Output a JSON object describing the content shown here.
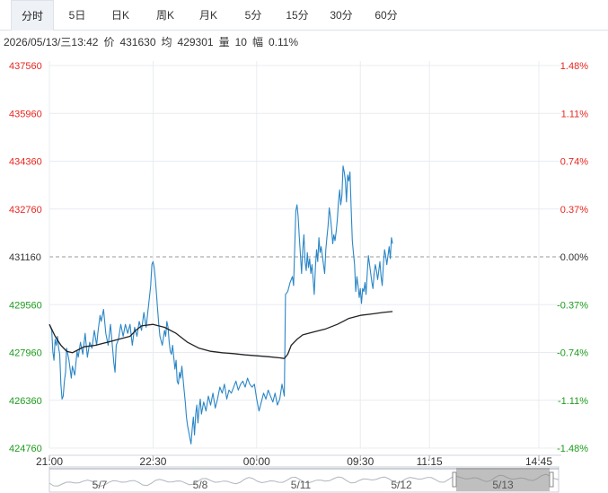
{
  "tabs": [
    {
      "label": "分时",
      "active": true
    },
    {
      "label": "5日"
    },
    {
      "label": "日K"
    },
    {
      "label": "周K"
    },
    {
      "label": "月K"
    },
    {
      "label": "5分"
    },
    {
      "label": "15分"
    },
    {
      "label": "30分"
    },
    {
      "label": "60分"
    }
  ],
  "info": {
    "datetime": "2026/05/13/三13:42",
    "price_label": "价",
    "price": "431630",
    "avg_label": "均",
    "avg": "429301",
    "volume_label": "量",
    "volume": "10",
    "amplitude_label": "幅",
    "amplitude": "0.11%"
  },
  "colors": {
    "up": "#e8261f",
    "down": "#1d9c1d",
    "price_line": "#2a86c6",
    "avg_line": "#222222",
    "grid": "#e8ecf0",
    "navigator_fill": "#8a8a8a"
  },
  "chart_data": {
    "type": "line",
    "ref_price": 431160,
    "ylim": [
      424760,
      437560
    ],
    "y_ticks_left": [
      "437560",
      "435960",
      "434360",
      "432760",
      "431160",
      "429560",
      "427960",
      "426360",
      "424760"
    ],
    "y_ticks_right": [
      "1.48%",
      "1.11%",
      "0.74%",
      "0.37%",
      "0.00%",
      "-0.37%",
      "-0.74%",
      "-1.11%",
      "-1.48%"
    ],
    "x_ticks": [
      {
        "label": "21:00",
        "t": 0
      },
      {
        "label": "22:30",
        "t": 90
      },
      {
        "label": "00:00",
        "t": 180
      },
      {
        "label": "09:30",
        "t": 270
      },
      {
        "label": "11:15",
        "t": 330
      },
      {
        "label": "14:45",
        "t": 425
      }
    ],
    "x_range": [
      0,
      425
    ],
    "navigator_dates": [
      "5/7",
      "5/8",
      "5/11",
      "5/12",
      "5/13"
    ],
    "series": [
      {
        "key": "price",
        "points": [
          [
            0,
            428900
          ],
          [
            2,
            428700
          ],
          [
            3,
            428000
          ],
          [
            4,
            427700
          ],
          [
            5,
            428400
          ],
          [
            6,
            428200
          ],
          [
            7,
            428500
          ],
          [
            8,
            428100
          ],
          [
            9,
            427900
          ],
          [
            10,
            426900
          ],
          [
            11,
            426400
          ],
          [
            12,
            426500
          ],
          [
            13,
            427000
          ],
          [
            14,
            427300
          ],
          [
            15,
            428100
          ],
          [
            17,
            427700
          ],
          [
            19,
            427100
          ],
          [
            20,
            427500
          ],
          [
            22,
            427200
          ],
          [
            24,
            428000
          ],
          [
            25,
            427800
          ],
          [
            27,
            428300
          ],
          [
            29,
            427900
          ],
          [
            31,
            428600
          ],
          [
            33,
            427800
          ],
          [
            35,
            428300
          ],
          [
            37,
            428100
          ],
          [
            39,
            428700
          ],
          [
            41,
            428200
          ],
          [
            42,
            428600
          ],
          [
            44,
            429200
          ],
          [
            45,
            429000
          ],
          [
            47,
            429400
          ],
          [
            49,
            428600
          ],
          [
            51,
            428200
          ],
          [
            53,
            428900
          ],
          [
            54,
            428500
          ],
          [
            56,
            427600
          ],
          [
            57,
            427300
          ],
          [
            58,
            428200
          ],
          [
            60,
            428400
          ],
          [
            62,
            428900
          ],
          [
            64,
            428500
          ],
          [
            66,
            428900
          ],
          [
            68,
            428600
          ],
          [
            70,
            428900
          ],
          [
            72,
            428200
          ],
          [
            74,
            428800
          ],
          [
            76,
            428500
          ],
          [
            78,
            429000
          ],
          [
            80,
            428700
          ],
          [
            82,
            429300
          ],
          [
            84,
            428800
          ],
          [
            86,
            429500
          ],
          [
            88,
            430200
          ],
          [
            89,
            430900
          ],
          [
            90,
            431000
          ],
          [
            91,
            430800
          ],
          [
            92,
            430400
          ],
          [
            93,
            429900
          ],
          [
            94,
            429400
          ],
          [
            95,
            428900
          ],
          [
            96,
            428500
          ],
          [
            98,
            428200
          ],
          [
            100,
            428700
          ],
          [
            101,
            428500
          ],
          [
            102,
            429000
          ],
          [
            103,
            428800
          ],
          [
            104,
            428300
          ],
          [
            105,
            428000
          ],
          [
            106,
            427900
          ],
          [
            107,
            428200
          ],
          [
            108,
            427800
          ],
          [
            109,
            427400
          ],
          [
            110,
            427700
          ],
          [
            111,
            427000
          ],
          [
            112,
            426900
          ],
          [
            113,
            427300
          ],
          [
            114,
            427100
          ],
          [
            115,
            427500
          ],
          [
            116,
            427100
          ],
          [
            117,
            426700
          ],
          [
            118,
            426300
          ],
          [
            119,
            425800
          ],
          [
            120,
            425500
          ],
          [
            121,
            425300
          ],
          [
            122,
            425100
          ],
          [
            123,
            424900
          ],
          [
            124,
            425400
          ],
          [
            125,
            425800
          ],
          [
            126,
            425200
          ],
          [
            127,
            425900
          ],
          [
            128,
            426200
          ],
          [
            129,
            425600
          ],
          [
            130,
            426100
          ],
          [
            131,
            426400
          ],
          [
            132,
            425900
          ],
          [
            134,
            426300
          ],
          [
            136,
            426000
          ],
          [
            138,
            426500
          ],
          [
            140,
            426200
          ],
          [
            142,
            426600
          ],
          [
            144,
            426100
          ],
          [
            146,
            426400
          ],
          [
            148,
            426800
          ],
          [
            150,
            426600
          ],
          [
            152,
            426900
          ],
          [
            154,
            426400
          ],
          [
            156,
            426700
          ],
          [
            158,
            426600
          ],
          [
            160,
            426800
          ],
          [
            162,
            427000
          ],
          [
            164,
            426700
          ],
          [
            166,
            426900
          ],
          [
            168,
            427000
          ],
          [
            170,
            426800
          ],
          [
            172,
            427100
          ],
          [
            174,
            426900
          ],
          [
            176,
            426800
          ],
          [
            178,
            426900
          ],
          [
            180,
            426400
          ],
          [
            181,
            426200
          ],
          [
            182,
            426000
          ],
          [
            184,
            426300
          ],
          [
            186,
            426600
          ],
          [
            188,
            426400
          ],
          [
            190,
            426700
          ],
          [
            192,
            426500
          ],
          [
            194,
            426300
          ],
          [
            196,
            426600
          ],
          [
            198,
            426200
          ],
          [
            200,
            426400
          ],
          [
            202,
            426900
          ],
          [
            204,
            426500
          ],
          [
            205,
            429900
          ],
          [
            207,
            430000
          ],
          [
            209,
            430300
          ],
          [
            211,
            430500
          ],
          [
            212,
            430200
          ],
          [
            214,
            432700
          ],
          [
            215,
            432900
          ],
          [
            216,
            432500
          ],
          [
            217,
            431800
          ],
          [
            218,
            431200
          ],
          [
            219,
            430600
          ],
          [
            220,
            431400
          ],
          [
            221,
            431900
          ],
          [
            222,
            431000
          ],
          [
            223,
            430700
          ],
          [
            224,
            431300
          ],
          [
            225,
            430800
          ],
          [
            226,
            431100
          ],
          [
            227,
            430600
          ],
          [
            228,
            430900
          ],
          [
            229,
            430400
          ],
          [
            230,
            429900
          ],
          [
            231,
            430800
          ],
          [
            232,
            431400
          ],
          [
            233,
            431000
          ],
          [
            234,
            431800
          ],
          [
            235,
            431300
          ],
          [
            236,
            431500
          ],
          [
            237,
            431200
          ],
          [
            238,
            430900
          ],
          [
            239,
            430600
          ],
          [
            240,
            431400
          ],
          [
            241,
            431800
          ],
          [
            242,
            432200
          ],
          [
            243,
            432800
          ],
          [
            244,
            432500
          ],
          [
            245,
            432100
          ],
          [
            246,
            431600
          ],
          [
            247,
            431900
          ],
          [
            248,
            431700
          ],
          [
            249,
            432000
          ],
          [
            250,
            432400
          ],
          [
            251,
            433000
          ],
          [
            252,
            433400
          ],
          [
            253,
            432900
          ],
          [
            254,
            433200
          ],
          [
            255,
            434200
          ],
          [
            256,
            434000
          ],
          [
            257,
            433700
          ],
          [
            258,
            433000
          ],
          [
            259,
            433900
          ],
          [
            260,
            433700
          ],
          [
            261,
            434000
          ],
          [
            262,
            432800
          ],
          [
            263,
            431700
          ],
          [
            264,
            431300
          ],
          [
            265,
            430900
          ],
          [
            266,
            430000
          ],
          [
            267,
            430500
          ],
          [
            268,
            430200
          ],
          [
            269,
            429800
          ],
          [
            270,
            430100
          ],
          [
            271,
            429600
          ],
          [
            272,
            430100
          ],
          [
            273,
            430000
          ],
          [
            274,
            430300
          ],
          [
            275,
            429900
          ],
          [
            276,
            430600
          ],
          [
            277,
            431200
          ],
          [
            278,
            430900
          ],
          [
            279,
            430600
          ],
          [
            280,
            430300
          ],
          [
            281,
            430100
          ],
          [
            282,
            430600
          ],
          [
            283,
            430900
          ],
          [
            284,
            430700
          ],
          [
            285,
            430400
          ],
          [
            286,
            430700
          ],
          [
            287,
            431000
          ],
          [
            288,
            430500
          ],
          [
            289,
            430200
          ],
          [
            290,
            430900
          ],
          [
            291,
            431400
          ],
          [
            292,
            431200
          ],
          [
            293,
            430900
          ],
          [
            294,
            431200
          ],
          [
            295,
            431500
          ],
          [
            296,
            431100
          ],
          [
            297,
            431800
          ],
          [
            298,
            431600
          ]
        ]
      },
      {
        "key": "avg",
        "points": [
          [
            0,
            428900
          ],
          [
            5,
            428500
          ],
          [
            10,
            428200
          ],
          [
            15,
            428000
          ],
          [
            20,
            427950
          ],
          [
            25,
            428050
          ],
          [
            30,
            428150
          ],
          [
            40,
            428200
          ],
          [
            50,
            428300
          ],
          [
            60,
            428400
          ],
          [
            70,
            428500
          ],
          [
            75,
            428700
          ],
          [
            80,
            428850
          ],
          [
            90,
            428900
          ],
          [
            100,
            428800
          ],
          [
            110,
            428600
          ],
          [
            120,
            428300
          ],
          [
            130,
            428100
          ],
          [
            140,
            428000
          ],
          [
            150,
            427950
          ],
          [
            160,
            427920
          ],
          [
            170,
            427880
          ],
          [
            180,
            427850
          ],
          [
            190,
            427820
          ],
          [
            200,
            427780
          ],
          [
            204,
            427760
          ],
          [
            207,
            427900
          ],
          [
            210,
            428200
          ],
          [
            215,
            428400
          ],
          [
            220,
            428550
          ],
          [
            230,
            428650
          ],
          [
            240,
            428750
          ],
          [
            250,
            428900
          ],
          [
            255,
            429000
          ],
          [
            260,
            429100
          ],
          [
            270,
            429200
          ],
          [
            280,
            429250
          ],
          [
            290,
            429300
          ],
          [
            298,
            429330
          ]
        ]
      }
    ]
  }
}
